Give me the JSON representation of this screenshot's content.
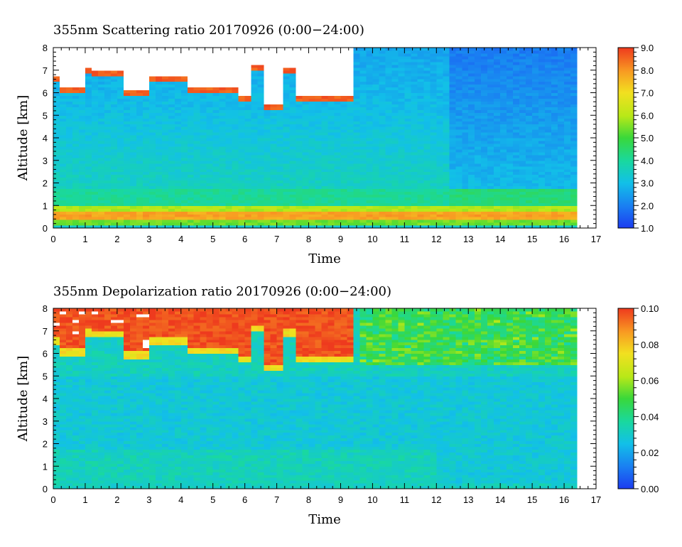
{
  "chart_data": [
    {
      "type": "heatmap",
      "title": "355nm Scattering ratio  20170926 (0:00−24:00)",
      "xlabel": "Time",
      "ylabel": "Altitude [km]",
      "xlim": [
        0,
        17
      ],
      "ylim": [
        0,
        8
      ],
      "x_ticks": [
        "0",
        "1",
        "2",
        "3",
        "4",
        "5",
        "6",
        "7",
        "8",
        "9",
        "10",
        "11",
        "12",
        "13",
        "14",
        "15",
        "16",
        "17"
      ],
      "y_ticks": [
        "0",
        "1",
        "2",
        "3",
        "4",
        "5",
        "6",
        "7",
        "8"
      ],
      "data_end_time": 16.4,
      "colorbar": {
        "min": 1.0,
        "max": 9.0,
        "ticks": [
          "1.0",
          "2.0",
          "3.0",
          "4.0",
          "5.0",
          "6.0",
          "7.0",
          "8.0",
          "9.0"
        ],
        "colormap": "rainbow (blue to red)"
      },
      "features": [
        {
          "name": "aerosol layer",
          "altitude_km": [
            0.4,
            0.75
          ],
          "value": 8.0
        },
        {
          "name": "boundary layer top",
          "altitude_km": [
            1.6,
            1.9
          ],
          "value": 4.0
        },
        {
          "name": "cirrus cloud",
          "time": [
            0,
            9.4
          ],
          "altitude_km": [
            5.4,
            8.0
          ],
          "value": "> 9.0"
        }
      ]
    },
    {
      "type": "heatmap",
      "title": "355nm Depolarization ratio  20170926 (0:00−24:00)",
      "xlabel": "Time",
      "ylabel": "Altitude [km]",
      "xlim": [
        0,
        17
      ],
      "ylim": [
        0,
        8
      ],
      "x_ticks": [
        "0",
        "1",
        "2",
        "3",
        "4",
        "5",
        "6",
        "7",
        "8",
        "9",
        "10",
        "11",
        "12",
        "13",
        "14",
        "15",
        "16",
        "17"
      ],
      "y_ticks": [
        "0",
        "1",
        "2",
        "3",
        "4",
        "5",
        "6",
        "7",
        "8"
      ],
      "data_end_time": 16.4,
      "colorbar": {
        "min": 0.0,
        "max": 0.1,
        "ticks": [
          "0.00",
          "0.02",
          "0.04",
          "0.06",
          "0.08",
          "0.10"
        ],
        "colormap": "rainbow (blue to red)"
      },
      "features": [
        {
          "name": "cirrus cloud",
          "time": [
            0,
            9.4
          ],
          "altitude_km": [
            5.4,
            8.0
          ],
          "value": 0.1
        },
        {
          "name": "boundary layer",
          "altitude_km": [
            0,
            1.7
          ],
          "value": 0.03
        }
      ]
    }
  ]
}
